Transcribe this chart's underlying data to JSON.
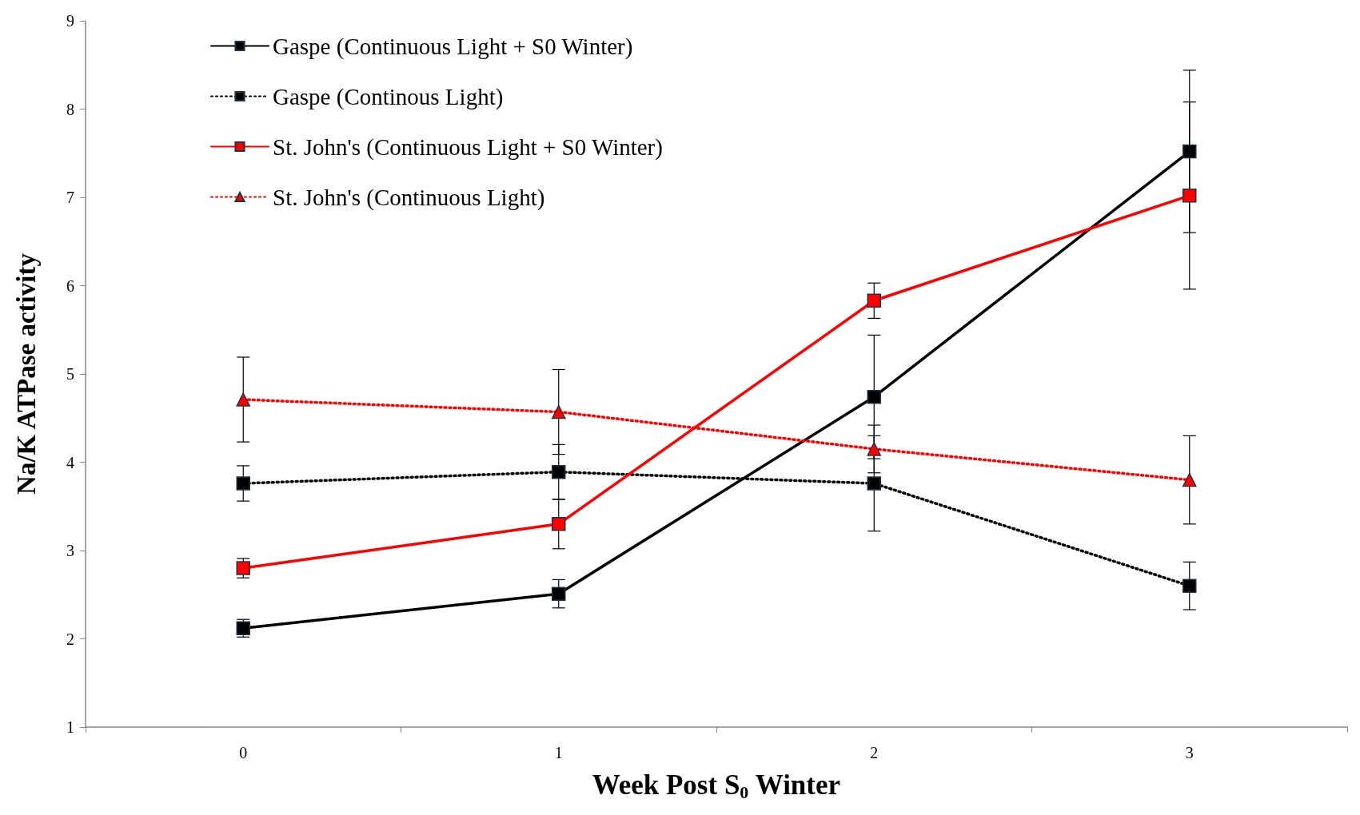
{
  "chart_data": {
    "type": "line",
    "xlabel": "Week Post S$_{0}$ Winter",
    "ylabel": "Na/K ATPase activity",
    "categories": [
      "0",
      "1",
      "2",
      "3"
    ],
    "ylim": [
      1,
      9
    ],
    "yticks": [
      1,
      2,
      3,
      4,
      5,
      6,
      7,
      8,
      9
    ],
    "grid": false,
    "legend": "top left",
    "series": [
      {
        "name": "Gaspe (Continuous Light + S0 Winter)",
        "color": "#000000",
        "marker": "square",
        "line_style": "solid",
        "values": [
          2.12,
          2.51,
          4.74,
          7.52
        ],
        "errors": [
          0.1,
          0.16,
          0.7,
          0.92
        ]
      },
      {
        "name": "Gaspe (Continous Light)",
        "color": "#000000",
        "marker": "square",
        "line_style": "dotted",
        "values": [
          3.76,
          3.89,
          3.76,
          2.6
        ],
        "errors": [
          0.2,
          0.31,
          0.54,
          0.27
        ]
      },
      {
        "name": "St. John's (Continuous Light + S0 Winter)",
        "color": "#ff0000",
        "marker": "square",
        "line_style": "solid",
        "values": [
          2.8,
          3.3,
          5.83,
          7.02
        ],
        "errors": [
          0.11,
          0.28,
          0.2,
          1.06
        ]
      },
      {
        "name": "St. John's (Continuous Light)",
        "color": "#ff0000",
        "marker": "triangle",
        "line_style": "dotted",
        "values": [
          4.71,
          4.57,
          4.15,
          3.8
        ],
        "errors": [
          0.48,
          0.48,
          0.27,
          0.5
        ]
      }
    ]
  }
}
